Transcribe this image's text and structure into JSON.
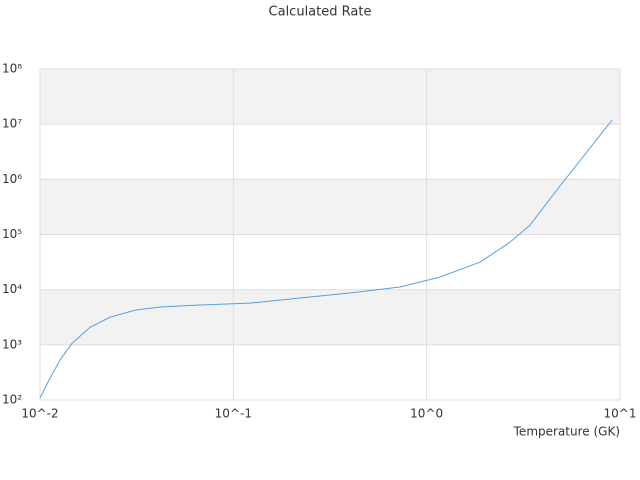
{
  "chart_data": {
    "type": "line",
    "title": "Calculated Rate",
    "x_label": "Temperature (GK)",
    "xscale": "log",
    "yscale": "log",
    "grid": true,
    "band_color": "#f2f2f2",
    "xlim": [
      0.01,
      10
    ],
    "ylim": [
      100,
      100000000
    ],
    "xticks": [
      {
        "value": 0.01,
        "label": "10^-2"
      },
      {
        "value": 0.1,
        "label": "10^-1"
      },
      {
        "value": 1,
        "label": "10^0"
      },
      {
        "value": 10,
        "label": "10^1"
      }
    ],
    "yticks": [
      {
        "value": 100,
        "label": "10²"
      },
      {
        "value": 1000,
        "label": "10³"
      },
      {
        "value": 10000,
        "label": "10⁴"
      },
      {
        "value": 100000,
        "label": "10⁵"
      },
      {
        "value": 1000000,
        "label": "10⁶"
      },
      {
        "value": 10000000,
        "label": "10⁷"
      },
      {
        "value": 100000000,
        "label": "10⁸"
      }
    ],
    "x": [
      0.01,
      0.01127,
      0.0127,
      0.01466,
      0.01815,
      0.023,
      0.031,
      0.0418,
      0.0673,
      0.122,
      0.221,
      0.401,
      0.728,
      1.17,
      1.89,
      2.7,
      3.42,
      4.89,
      7.0,
      9.1
    ],
    "series": [
      {
        "color": "#5a9fe0",
        "values": [
          109,
          250,
          530,
          1070,
          2080,
          3160,
          4250,
          4850,
          5260,
          5700,
          7060,
          8700,
          11200,
          16900,
          31600,
          72700,
          147000,
          757000,
          3700000,
          11900000
        ]
      }
    ]
  }
}
